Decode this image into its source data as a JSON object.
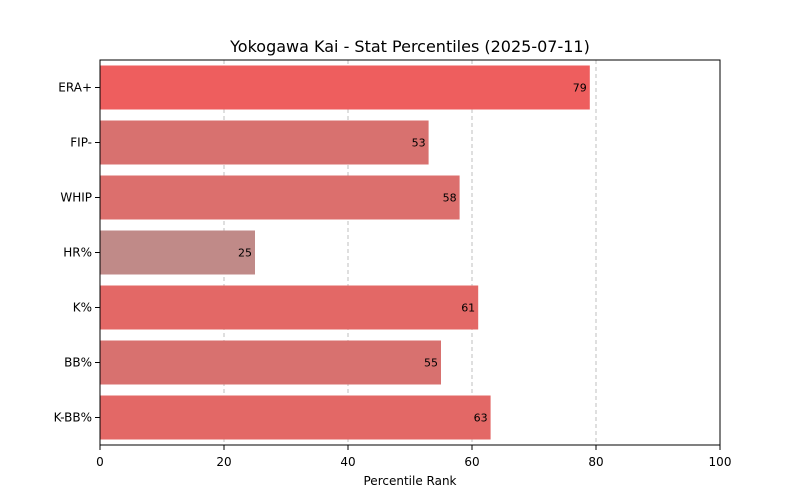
{
  "chart_data": {
    "type": "bar",
    "orientation": "horizontal",
    "title": "Yokogawa Kai - Stat Percentiles (2025-07-11)",
    "xlabel": "Percentile Rank",
    "ylabel": "",
    "xlim": [
      0,
      100
    ],
    "xticks": [
      0,
      20,
      40,
      60,
      80,
      100
    ],
    "grid": "x-dashed",
    "categories": [
      "ERA+",
      "FIP-",
      "WHIP",
      "HR%",
      "K%",
      "BB%",
      "K-BB%"
    ],
    "values": [
      79,
      53,
      58,
      25,
      61,
      55,
      63
    ],
    "colors": [
      "#ee5e5e",
      "#d8716f",
      "#dc6f6d",
      "#c08a88",
      "#e36866",
      "#d8716f",
      "#e36866"
    ]
  }
}
